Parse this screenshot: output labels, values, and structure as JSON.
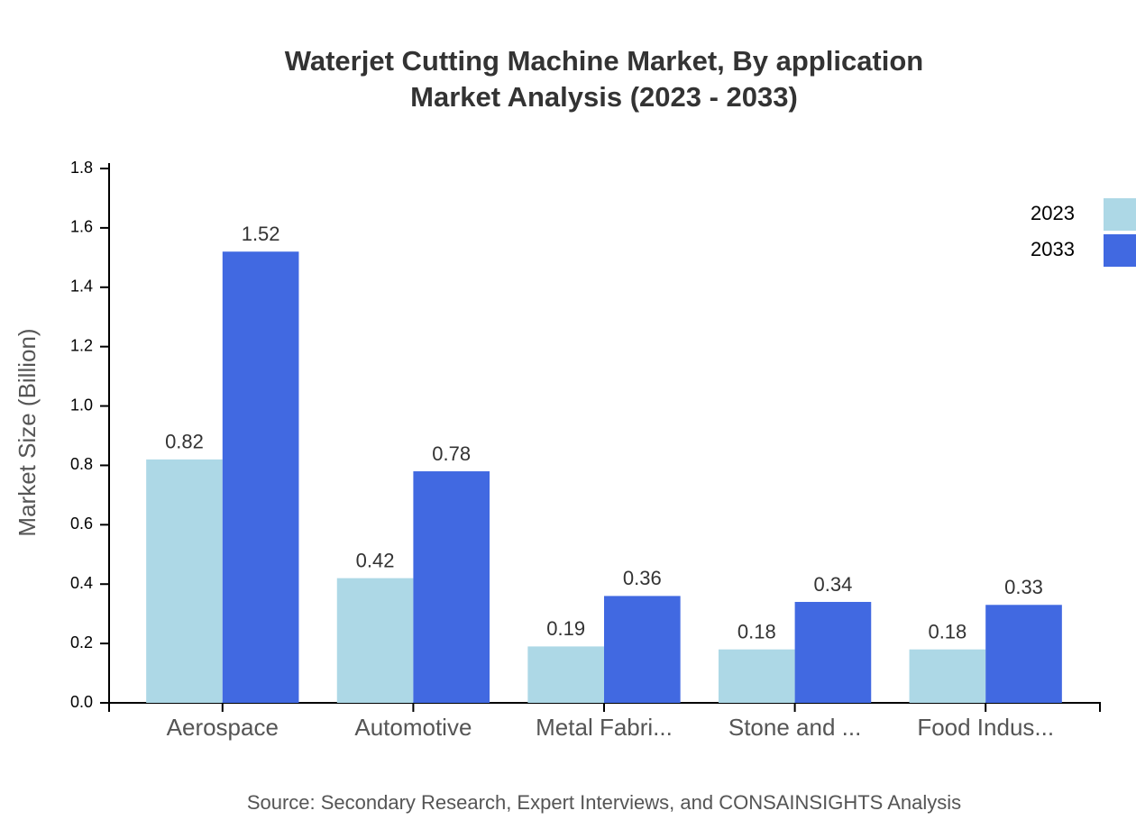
{
  "chart_data": {
    "type": "bar",
    "title": "Waterjet Cutting Machine Market, By application",
    "subtitle": "Market Analysis (2023 - 2033)",
    "y_label": "Market Size (Billion)",
    "source": "Source: Secondary Research, Expert Interviews, and CONSAINSIGHTS Analysis",
    "categories": [
      "Aerospace",
      "Automotive",
      "Metal Fabri...",
      "Stone and ...",
      "Food Indus..."
    ],
    "series": [
      {
        "name": "2023",
        "color": "#add8e6",
        "values": [
          0.82,
          0.42,
          0.19,
          0.18,
          0.18
        ]
      },
      {
        "name": "2033",
        "color": "#4169e1",
        "values": [
          1.52,
          0.78,
          0.36,
          0.34,
          0.33
        ]
      }
    ],
    "ylim": [
      0,
      1.8
    ],
    "yticks": [
      {
        "value": 0,
        "label": "0.0"
      },
      0.2,
      0.4,
      0.6,
      0.8,
      {
        "value": 1,
        "label": "1.0"
      },
      1.2,
      1.4,
      1.6,
      1.8
    ],
    "grid": false,
    "legend": "top-right"
  }
}
